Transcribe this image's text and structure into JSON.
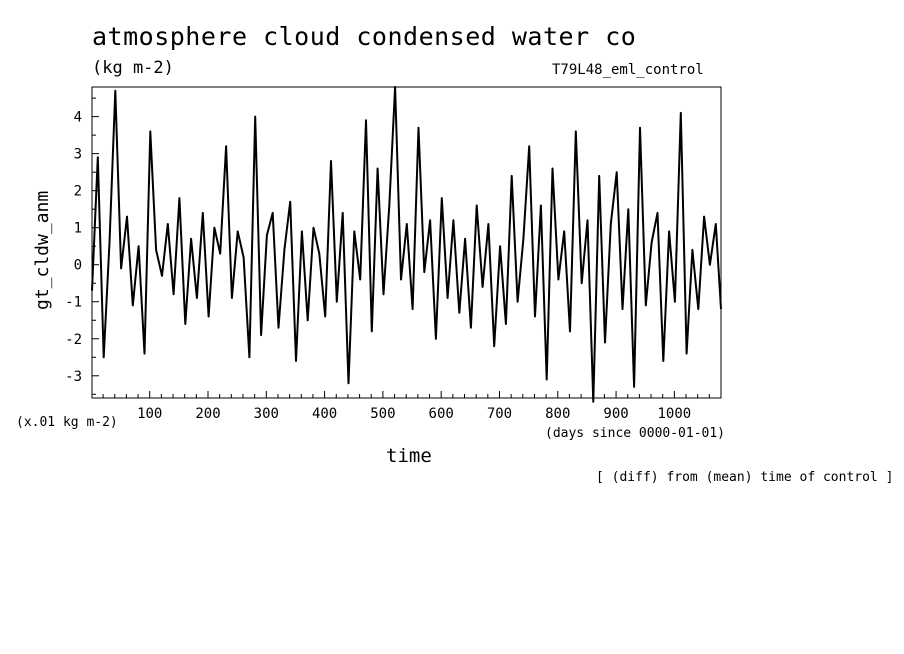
{
  "figure": {
    "title": "atmosphere cloud condensed water co",
    "units": "(kg m-2)",
    "run": "T79L48_eml_control",
    "scale_note": "(x.01 kg m-2)",
    "x_unit_note": "(days since 0000-01-01)",
    "xlabel": "time",
    "ylabel": "gt_cldw_anm",
    "operation_note": "[ (diff) from (mean) time of control ]"
  },
  "chart_data": {
    "type": "line",
    "title": "atmosphere cloud condensed water co",
    "xlabel": "time",
    "ylabel": "gt_cldw_anm",
    "xlim": [
      1,
      1080
    ],
    "ylim": [
      -3.6,
      4.8
    ],
    "xticks": [
      100,
      200,
      300,
      400,
      500,
      600,
      700,
      800,
      900,
      1000
    ],
    "yticks": [
      -3,
      -2,
      -1,
      0,
      1,
      2,
      3,
      4
    ],
    "grid": false,
    "series": [
      {
        "x": [
          1,
          11,
          21,
          31,
          41,
          51,
          61,
          71,
          81,
          91,
          101,
          111,
          121,
          131,
          141,
          151,
          161,
          171,
          181,
          191,
          201,
          211,
          221,
          231,
          241,
          251,
          261,
          271,
          281,
          291,
          301,
          311,
          321,
          331,
          341,
          351,
          361,
          371,
          381,
          391,
          401,
          411,
          421,
          431,
          441,
          451,
          461,
          471,
          481,
          491,
          501,
          511,
          521,
          531,
          541,
          551,
          561,
          571,
          581,
          591,
          601,
          611,
          621,
          631,
          641,
          651,
          661,
          671,
          681,
          691,
          701,
          711,
          721,
          731,
          741,
          751,
          761,
          771,
          781,
          791,
          801,
          811,
          821,
          831,
          841,
          851,
          861,
          871,
          881,
          891,
          901,
          911,
          921,
          931,
          941,
          951,
          961,
          971,
          981,
          991,
          1001,
          1011,
          1021,
          1031,
          1041,
          1051,
          1061,
          1071,
          1080
        ],
        "values": [
          -0.7,
          2.9,
          -2.5,
          0.6,
          4.7,
          -0.1,
          1.3,
          -1.1,
          0.5,
          -2.4,
          3.6,
          0.4,
          -0.3,
          1.1,
          -0.8,
          1.8,
          -1.6,
          0.7,
          -0.9,
          1.4,
          -1.4,
          1.0,
          0.3,
          3.2,
          -0.9,
          0.9,
          0.2,
          -2.5,
          4.0,
          -1.9,
          0.8,
          1.4,
          -1.7,
          0.4,
          1.7,
          -2.6,
          0.9,
          -1.5,
          1.0,
          0.3,
          -1.4,
          2.8,
          -1.0,
          1.4,
          -3.2,
          0.9,
          -0.4,
          3.9,
          -1.8,
          2.6,
          -0.8,
          1.6,
          4.8,
          -0.4,
          1.1,
          -1.2,
          3.7,
          -0.2,
          1.2,
          -2.0,
          1.8,
          -0.9,
          1.2,
          -1.3,
          0.7,
          -1.7,
          1.6,
          -0.6,
          1.1,
          -2.2,
          0.5,
          -1.6,
          2.4,
          -1.0,
          0.7,
          3.2,
          -1.4,
          1.6,
          -3.1,
          2.6,
          -0.4,
          0.9,
          -1.8,
          3.6,
          -0.5,
          1.2,
          -3.7,
          2.4,
          -2.1,
          1.1,
          2.5,
          -1.2,
          1.5,
          -3.3,
          3.7,
          -1.1,
          0.6,
          1.4,
          -2.6,
          0.9,
          -1.0,
          4.1,
          -2.4,
          0.4,
          -1.2,
          1.3,
          0.0,
          1.1,
          -1.2
        ]
      }
    ]
  }
}
